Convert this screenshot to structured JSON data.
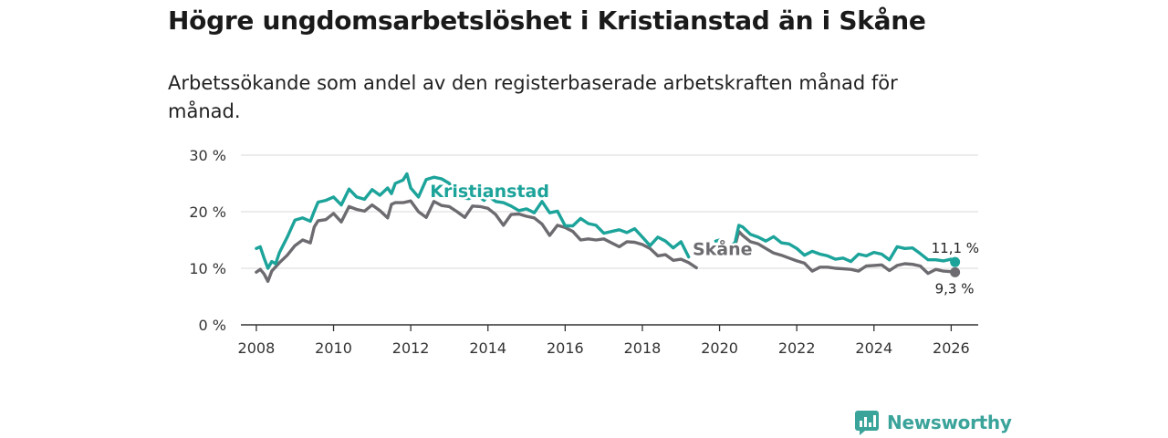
{
  "title": "Högre ungdomsarbetslöshet i Kristianstad än i Skåne",
  "subtitle": "Arbetssökande som andel av den registerbaserade arbetskraften månad för månad.",
  "brand": {
    "name": "Newsworthy",
    "icon": "newsworthy-logo-icon"
  },
  "colors": {
    "kristianstad": "#1ca39a",
    "skane": "#6d6b70",
    "grid": "#d9d9d9",
    "axis": "#333333"
  },
  "chart_data": {
    "type": "line",
    "title": "Högre ungdomsarbetslöshet i Kristianstad än i Skåne",
    "xlabel": "",
    "ylabel": "",
    "xlim": [
      2007.6,
      2026.7
    ],
    "ylim": [
      0,
      30
    ],
    "grid": true,
    "y_ticks": [
      0,
      10,
      20,
      30
    ],
    "y_tick_labels": [
      "0 %",
      "10 %",
      "20 %",
      "30 %"
    ],
    "x_ticks": [
      2008,
      2010,
      2012,
      2014,
      2016,
      2018,
      2020,
      2022,
      2024,
      2026
    ],
    "x_tick_labels": [
      "2008",
      "2010",
      "2012",
      "2014",
      "2016",
      "2018",
      "2020",
      "2022",
      "2024",
      "2026"
    ],
    "series": [
      {
        "name": "Kristianstad",
        "color": "#1ca39a",
        "end_label": "11,1 %",
        "x": [
          2008.0,
          2008.1,
          2008.2,
          2008.3,
          2008.4,
          2008.5,
          2008.6,
          2008.8,
          2009.0,
          2009.2,
          2009.4,
          2009.5,
          2009.6,
          2009.8,
          2010.0,
          2010.2,
          2010.4,
          2010.6,
          2010.8,
          2011.0,
          2011.2,
          2011.4,
          2011.5,
          2011.6,
          2011.8,
          2011.9,
          2012.0,
          2012.2,
          2012.4,
          2012.6,
          2012.8,
          2013.0,
          2013.1,
          2013.3,
          2013.5,
          2013.7,
          2013.9,
          2014.0,
          2014.2,
          2014.4,
          2014.6,
          2014.8,
          2015.0,
          2015.2,
          2015.4,
          2015.6,
          2015.8,
          2016.0,
          2016.2,
          2016.4,
          2016.6,
          2016.8,
          2017.0,
          2017.2,
          2017.4,
          2017.6,
          2017.8,
          2018.0,
          2018.2,
          2018.4,
          2018.6,
          2018.8,
          2019.0,
          2019.2,
          null,
          2019.9,
          2020.0,
          2020.2,
          2020.4,
          2020.5,
          2020.6,
          2020.8,
          2021.0,
          2021.2,
          2021.4,
          2021.6,
          2021.8,
          2022.0,
          2022.2,
          2022.4,
          2022.6,
          2022.8,
          2023.0,
          2023.2,
          2023.4,
          2023.6,
          2023.8,
          2024.0,
          2024.2,
          2024.4,
          2024.6,
          2024.8,
          2025.0,
          2025.2,
          2025.4,
          2025.6,
          2025.8,
          2026.0,
          2026.1
        ],
        "y": [
          13.5,
          13.8,
          11.8,
          10.0,
          11.2,
          10.8,
          12.8,
          15.5,
          18.5,
          18.9,
          18.3,
          20.1,
          21.7,
          22.0,
          22.6,
          21.2,
          24.0,
          22.6,
          22.2,
          23.9,
          22.9,
          24.2,
          23.2,
          25.0,
          25.6,
          26.7,
          24.2,
          22.6,
          25.7,
          26.1,
          25.8,
          25.0,
          23.8,
          22.5,
          22.3,
          23.0,
          22.0,
          22.8,
          21.8,
          21.6,
          21.0,
          20.2,
          20.5,
          19.8,
          21.8,
          19.8,
          20.1,
          17.5,
          17.5,
          18.8,
          17.9,
          17.6,
          16.2,
          16.5,
          16.8,
          16.3,
          17.0,
          15.5,
          14.0,
          15.5,
          14.8,
          13.6,
          14.7,
          12.0,
          null,
          14.8,
          15.0,
          13.7,
          14.5,
          17.6,
          17.3,
          16.0,
          15.5,
          14.8,
          15.6,
          14.5,
          14.3,
          13.5,
          12.3,
          13.0,
          12.5,
          12.2,
          11.6,
          11.8,
          11.2,
          12.5,
          12.2,
          12.8,
          12.5,
          11.5,
          13.8,
          13.5,
          13.6,
          12.6,
          11.5,
          11.5,
          11.3,
          11.6,
          11.1
        ]
      },
      {
        "name": "Skåne",
        "color": "#6d6b70",
        "end_label": "9,3 %",
        "x": [
          2008.0,
          2008.1,
          2008.2,
          2008.3,
          2008.4,
          2008.6,
          2008.8,
          2009.0,
          2009.2,
          2009.4,
          2009.5,
          2009.6,
          2009.8,
          2010.0,
          2010.2,
          2010.4,
          2010.6,
          2010.8,
          2011.0,
          2011.2,
          2011.4,
          2011.5,
          2011.6,
          2011.8,
          2012.0,
          2012.2,
          2012.4,
          2012.6,
          2012.8,
          2013.0,
          2013.2,
          2013.4,
          2013.6,
          2013.8,
          2014.0,
          2014.2,
          2014.4,
          2014.6,
          2014.8,
          2015.0,
          2015.2,
          2015.4,
          2015.6,
          2015.8,
          2016.0,
          2016.2,
          2016.4,
          2016.6,
          2016.8,
          2017.0,
          2017.2,
          2017.4,
          2017.6,
          2017.8,
          2018.0,
          2018.2,
          2018.4,
          2018.6,
          2018.8,
          2019.0,
          2019.2,
          2019.4,
          null,
          2020.0,
          2020.2,
          2020.4,
          2020.5,
          2020.6,
          2020.8,
          2021.0,
          2021.2,
          2021.4,
          2021.6,
          2021.8,
          2022.0,
          2022.2,
          2022.4,
          2022.6,
          2022.8,
          2023.0,
          2023.2,
          2023.4,
          2023.6,
          2023.8,
          2024.0,
          2024.2,
          2024.4,
          2024.6,
          2024.8,
          2025.0,
          2025.2,
          2025.4,
          2025.6,
          2025.8,
          2026.0,
          2026.1
        ],
        "y": [
          9.3,
          9.8,
          9.0,
          7.7,
          9.5,
          11.0,
          12.3,
          14.0,
          15.0,
          14.5,
          17.3,
          18.4,
          18.6,
          19.7,
          18.2,
          20.9,
          20.4,
          20.1,
          21.2,
          20.2,
          18.9,
          21.3,
          21.6,
          21.6,
          21.9,
          20.0,
          19.0,
          21.8,
          21.1,
          20.9,
          20.0,
          19.0,
          21.0,
          20.9,
          20.6,
          19.5,
          17.6,
          19.5,
          19.6,
          19.2,
          18.9,
          17.8,
          15.8,
          17.6,
          17.2,
          16.5,
          15.0,
          15.2,
          15.0,
          15.2,
          14.5,
          13.8,
          14.7,
          14.6,
          14.2,
          13.5,
          12.2,
          12.4,
          11.4,
          11.6,
          11.0,
          10.1,
          null,
          14.5,
          13.0,
          14.0,
          16.5,
          15.8,
          14.7,
          14.3,
          13.5,
          12.7,
          12.3,
          11.8,
          11.3,
          10.9,
          9.5,
          10.2,
          10.2,
          10.0,
          9.9,
          9.8,
          9.5,
          10.4,
          10.5,
          10.6,
          9.6,
          10.5,
          10.8,
          10.7,
          10.4,
          9.1,
          9.8,
          9.5,
          9.4,
          9.3
        ]
      }
    ],
    "annotations": [
      {
        "text": "Kristianstad",
        "x": 2012.5,
        "y": 22.6,
        "series": "Kristianstad"
      },
      {
        "text": "Skåne",
        "x": 2019.3,
        "y": 12.3,
        "series": "Skåne"
      }
    ]
  }
}
